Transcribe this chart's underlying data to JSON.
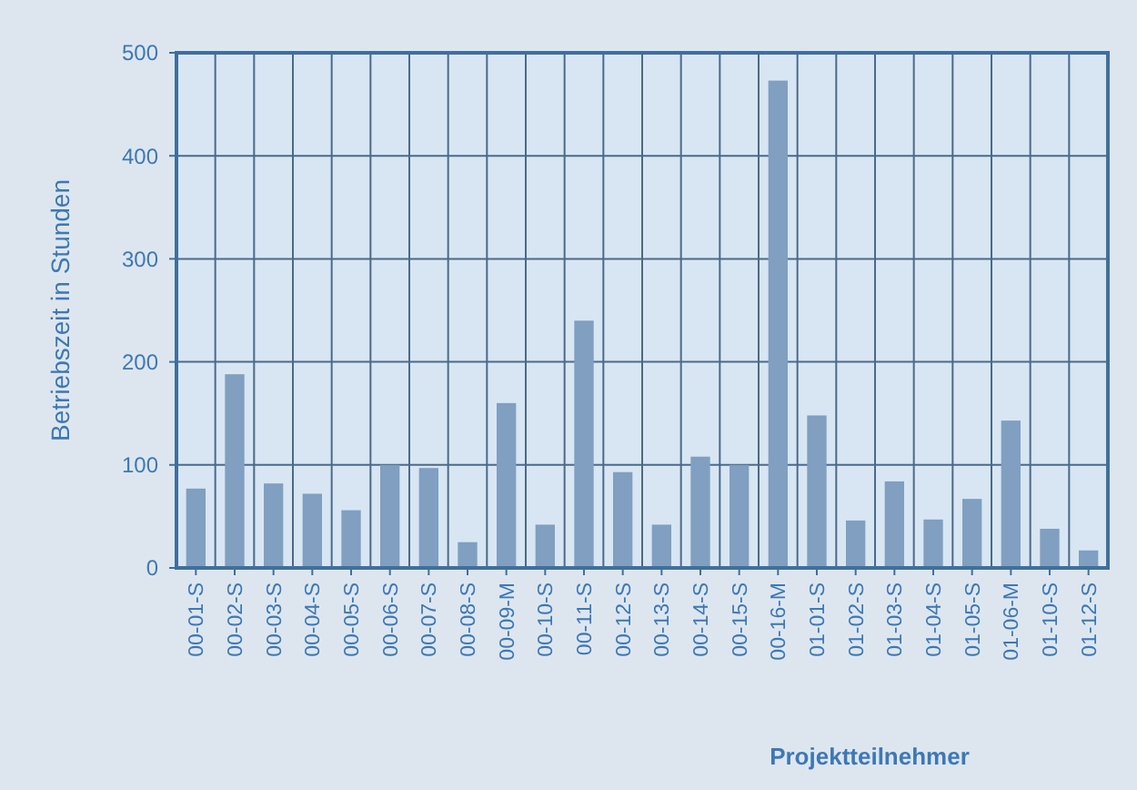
{
  "chart_data": {
    "type": "bar",
    "xlabel": "Projektteilnehmer",
    "ylabel": "Betriebszeit in Stunden",
    "categories": [
      "00-01-S",
      "00-02-S",
      "00-03-S",
      "00-04-S",
      "00-05-S",
      "00-06-S",
      "00-07-S",
      "00-08-S",
      "00-09-M",
      "00-10-S",
      "00-11-S",
      "00-12-S",
      "00-13-S",
      "00-14-S",
      "00-15-S",
      "00-16-M",
      "01-01-S",
      "01-02-S",
      "01-03-S",
      "01-04-S",
      "01-05-S",
      "01-06-M",
      "01-10-S",
      "01-12-S"
    ],
    "values": [
      77,
      188,
      82,
      72,
      56,
      100,
      97,
      25,
      160,
      42,
      240,
      93,
      42,
      108,
      100,
      473,
      148,
      46,
      84,
      47,
      67,
      143,
      38,
      17
    ],
    "color": "#809fc1",
    "ylim": [
      0,
      500
    ],
    "yticks": [
      0,
      100,
      200,
      300,
      400,
      500
    ],
    "grid": true
  }
}
